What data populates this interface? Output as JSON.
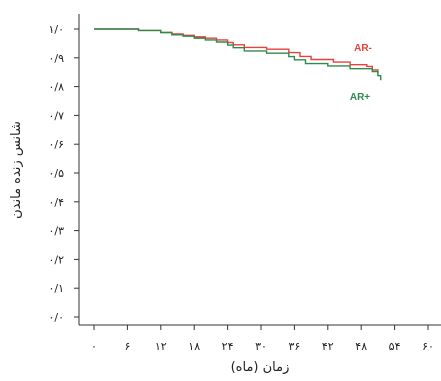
{
  "chart_data": {
    "type": "line",
    "xlabel": "زمان (ماه)",
    "ylabel": "شانس زنده ماندن",
    "xlim": [
      0,
      60
    ],
    "ylim": [
      0,
      1
    ],
    "x_ticks": [
      {
        "value": 0,
        "label": "۰"
      },
      {
        "value": 6,
        "label": "۶"
      },
      {
        "value": 12,
        "label": "۱۲"
      },
      {
        "value": 18,
        "label": "۱۸"
      },
      {
        "value": 24,
        "label": "۲۴"
      },
      {
        "value": 30,
        "label": "۳۰"
      },
      {
        "value": 36,
        "label": "۳۶"
      },
      {
        "value": 42,
        "label": "۴۲"
      },
      {
        "value": 48,
        "label": "۴۸"
      },
      {
        "value": 54,
        "label": "۵۴"
      },
      {
        "value": 60,
        "label": "۶۰"
      }
    ],
    "y_ticks": [
      {
        "value": 0,
        "label": "۰/۰"
      },
      {
        "value": 0.1,
        "label": "۰/۱"
      },
      {
        "value": 0.2,
        "label": "۰/۲"
      },
      {
        "value": 0.3,
        "label": "۰/۳"
      },
      {
        "value": 0.4,
        "label": "۰/۴"
      },
      {
        "value": 0.5,
        "label": "۰/۵"
      },
      {
        "value": 0.6,
        "label": "۰/۶"
      },
      {
        "value": 0.7,
        "label": "۰/۷"
      },
      {
        "value": 0.8,
        "label": "۰/۸"
      },
      {
        "value": 0.9,
        "label": "۰/۹"
      },
      {
        "value": 1,
        "label": "۱/۰"
      }
    ],
    "grid": false,
    "series": [
      {
        "name": "AR-",
        "color": "#e8413c",
        "step": true,
        "points": [
          [
            0,
            1.0
          ],
          [
            4,
            1.0
          ],
          [
            8,
            0.995
          ],
          [
            12,
            0.988
          ],
          [
            14,
            0.983
          ],
          [
            16,
            0.978
          ],
          [
            18,
            0.973
          ],
          [
            20,
            0.968
          ],
          [
            22,
            0.962
          ],
          [
            24,
            0.953
          ],
          [
            25,
            0.945
          ],
          [
            27,
            0.936
          ],
          [
            31,
            0.93
          ],
          [
            35,
            0.918
          ],
          [
            37,
            0.905
          ],
          [
            39,
            0.894
          ],
          [
            43,
            0.885
          ],
          [
            46,
            0.876
          ],
          [
            49,
            0.87
          ],
          [
            50,
            0.858
          ],
          [
            51,
            0.846
          ]
        ]
      },
      {
        "name": "AR+",
        "color": "#2e8b4e",
        "step": true,
        "points": [
          [
            0,
            1.0
          ],
          [
            4,
            1.0
          ],
          [
            8,
            0.995
          ],
          [
            12,
            0.988
          ],
          [
            14,
            0.98
          ],
          [
            16,
            0.975
          ],
          [
            18,
            0.968
          ],
          [
            20,
            0.962
          ],
          [
            22,
            0.955
          ],
          [
            24,
            0.944
          ],
          [
            25,
            0.935
          ],
          [
            27,
            0.924
          ],
          [
            31,
            0.916
          ],
          [
            35,
            0.904
          ],
          [
            36,
            0.893
          ],
          [
            38,
            0.88
          ],
          [
            42,
            0.872
          ],
          [
            46,
            0.862
          ],
          [
            50,
            0.852
          ],
          [
            51,
            0.838
          ],
          [
            51.5,
            0.822
          ]
        ]
      }
    ]
  }
}
